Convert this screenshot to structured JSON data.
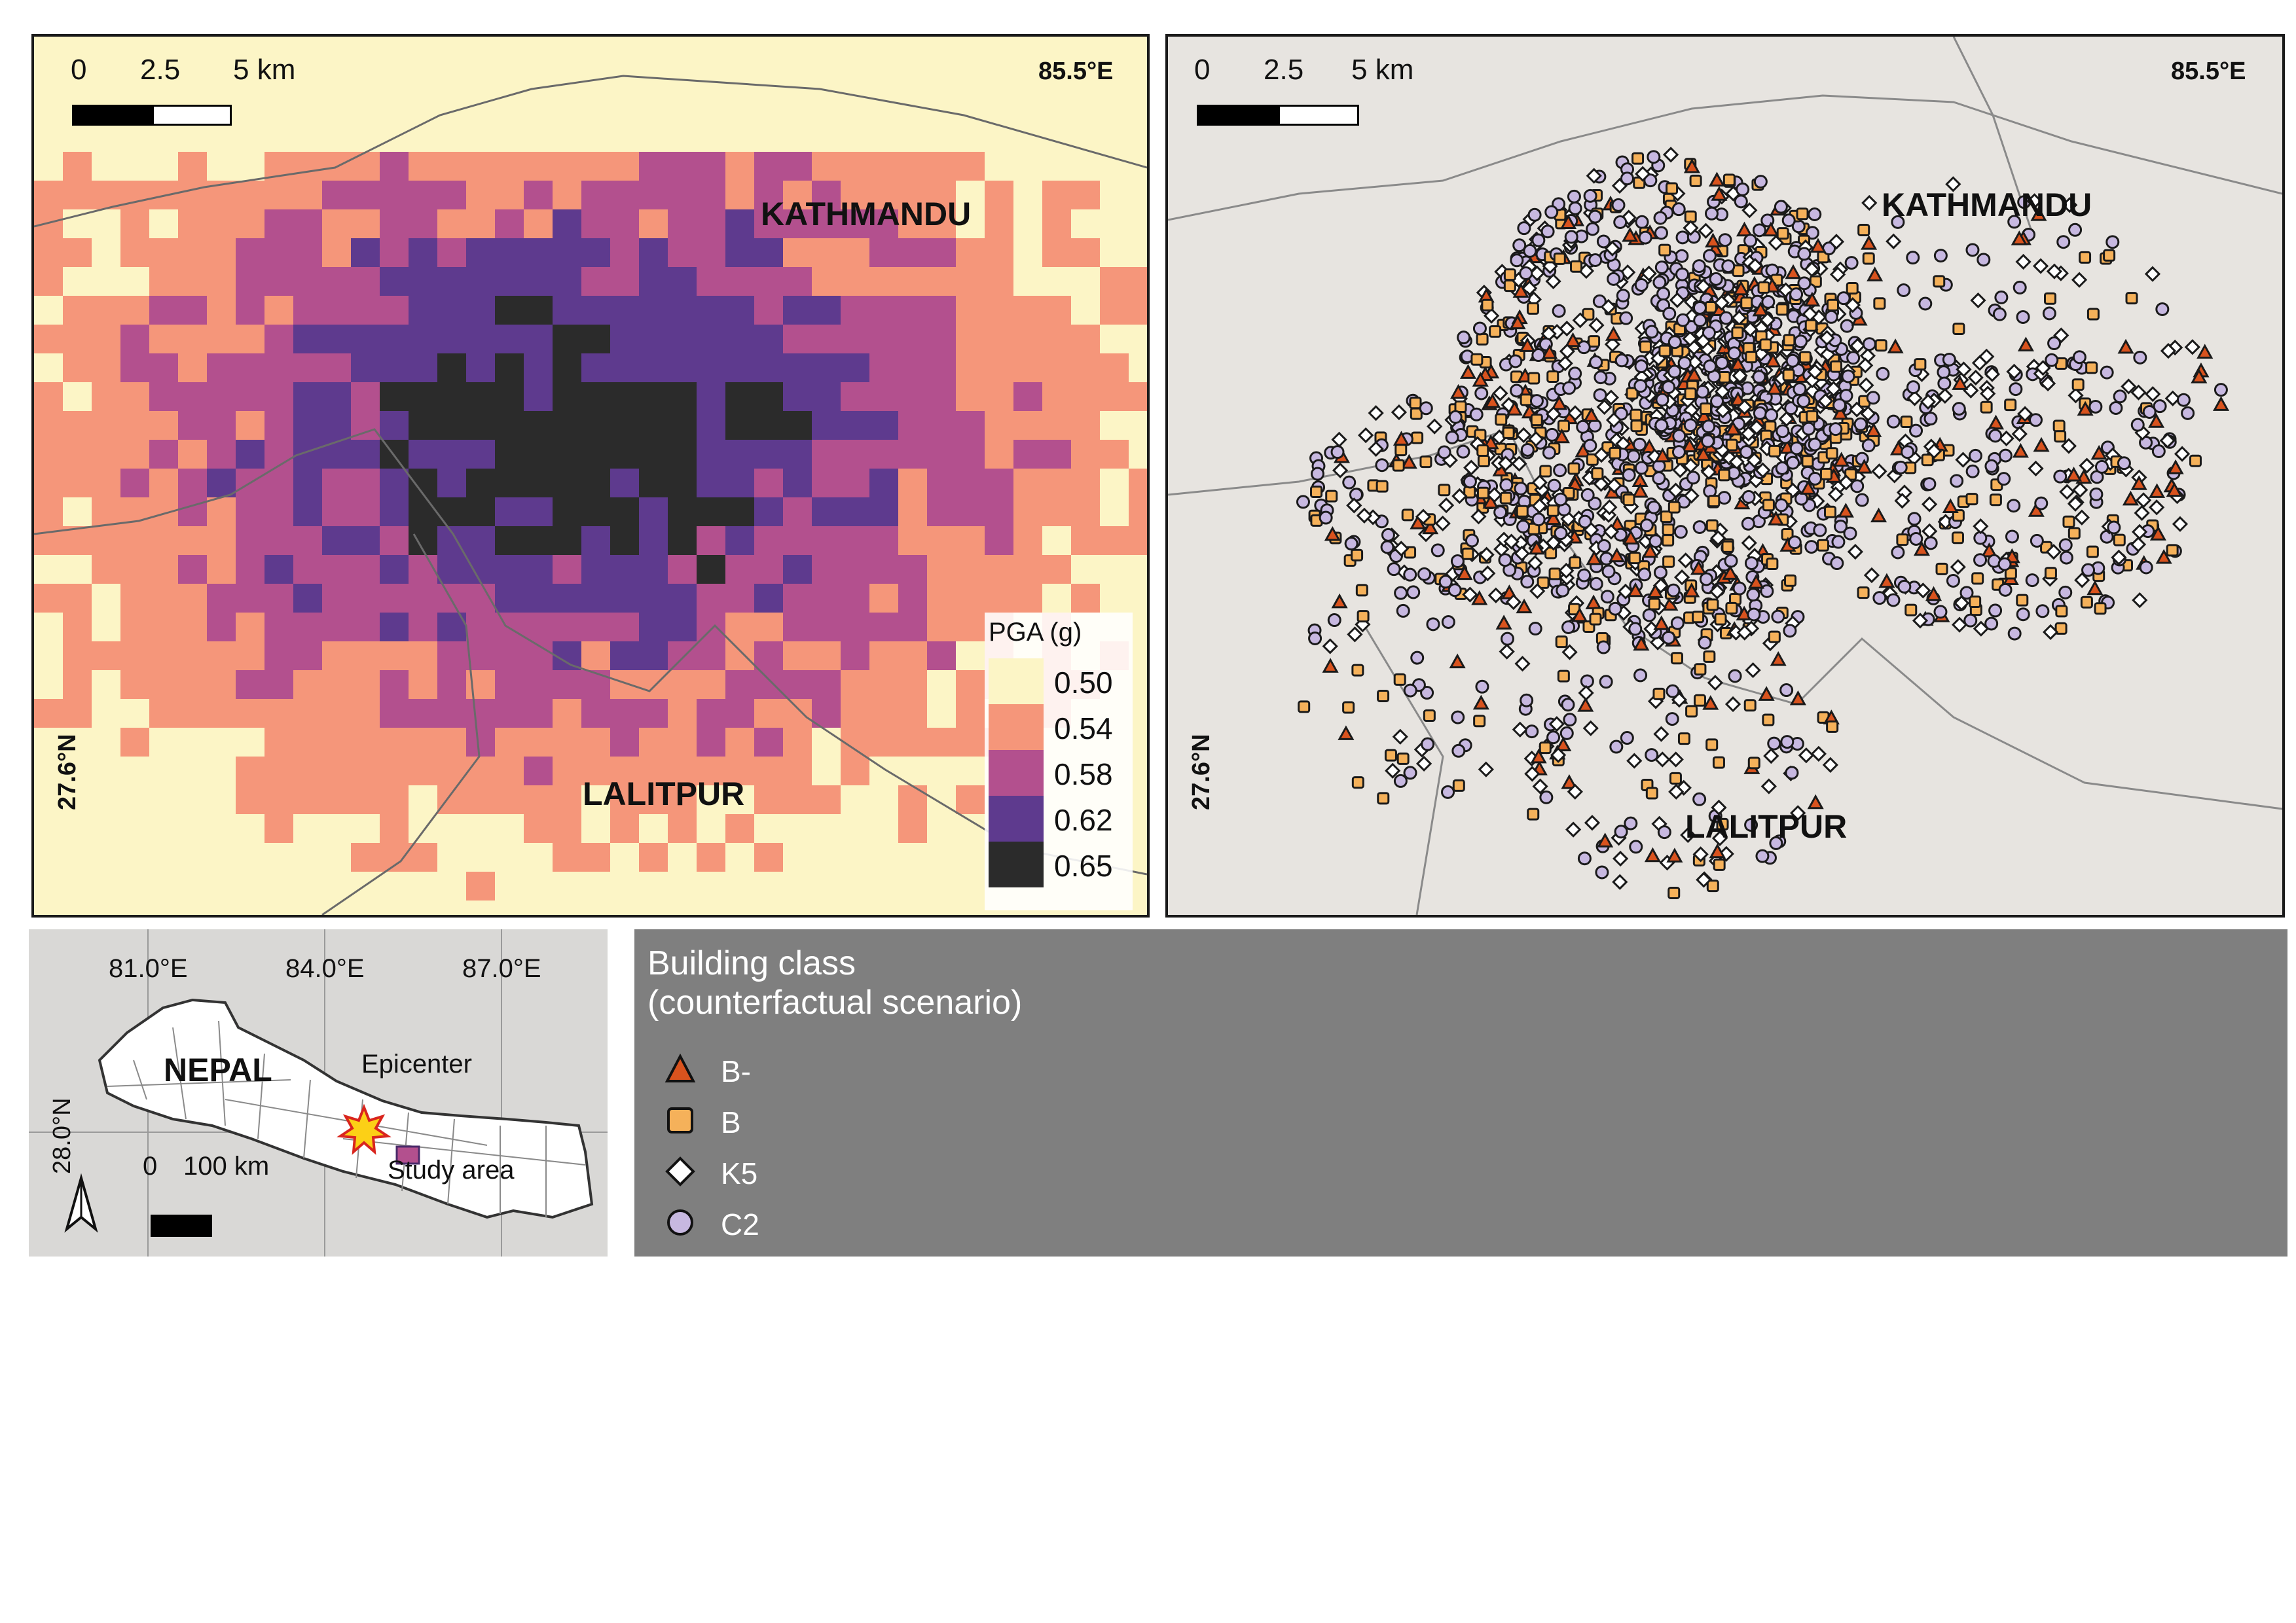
{
  "pga_map": {
    "scale_labels": [
      "0",
      "2.5",
      "5 km"
    ],
    "lon_label": "85.5°E",
    "lat_label": "27.6°N",
    "city_north": "KATHMANDU",
    "city_south": "LALITPUR",
    "legend_title": "PGA (g)",
    "legend_classes": [
      {
        "value": "0.50",
        "color": "#fcf5c6"
      },
      {
        "value": "0.54",
        "color": "#f5967a"
      },
      {
        "value": "0.58",
        "color": "#b3508e"
      },
      {
        "value": "0.62",
        "color": "#5e3a8e"
      },
      {
        "value": "0.65",
        "color": "#2b2b2b"
      }
    ]
  },
  "building_map": {
    "scale_labels": [
      "0",
      "2.5",
      "5 km"
    ],
    "lon_label": "85.5°E",
    "lat_label": "27.6°N",
    "city_north": "KATHMANDU",
    "city_south": "LALITPUR"
  },
  "inset": {
    "lon_labels": [
      "81.0°E",
      "84.0°E",
      "87.0°E"
    ],
    "lat_label": "28.0°N",
    "country": "NEPAL",
    "epicenter_label": "Epicenter",
    "study_area_label": "Study area",
    "scale_labels": [
      "0",
      "100 km"
    ],
    "north_arrow": "north-arrow-icon"
  },
  "building_legend": {
    "title": "Building class\n(counterfactual scenario)",
    "classes": [
      {
        "label": "B-",
        "symbol": "triangle",
        "color": "#d9531e"
      },
      {
        "label": "B",
        "symbol": "square",
        "color": "#f5b15a"
      },
      {
        "label": "K5",
        "symbol": "diamond",
        "color": "#ffffff"
      },
      {
        "label": "C2",
        "symbol": "circle",
        "color": "#c7b8e0"
      }
    ]
  }
}
